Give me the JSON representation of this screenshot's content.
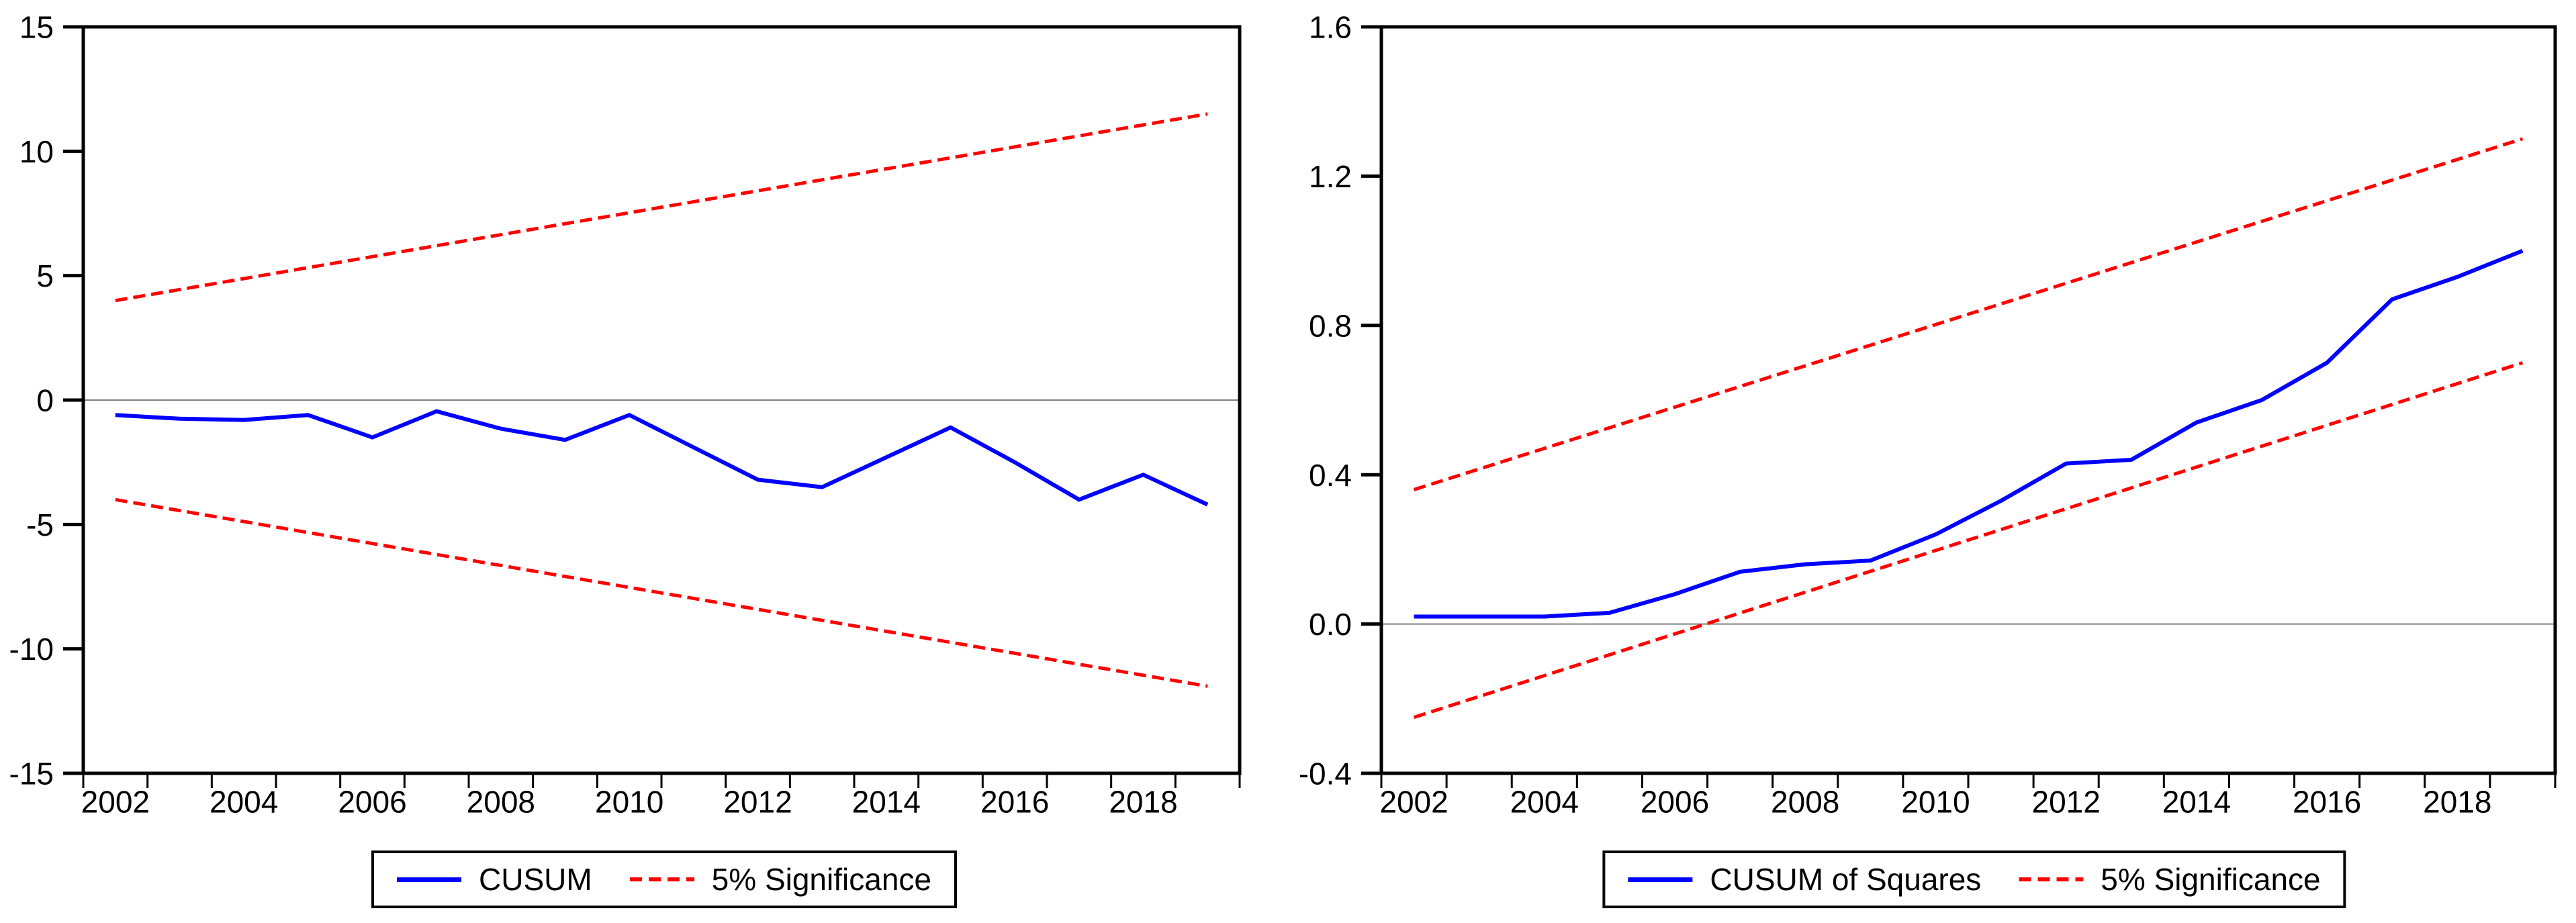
{
  "colors": {
    "series_line": "#0000ff",
    "significance_line": "#ff0000",
    "axis": "#000000",
    "zero_line": "#808080",
    "background": "#ffffff",
    "text": "#000000"
  },
  "chart_data": [
    {
      "type": "line",
      "title": "",
      "xlabel": "",
      "ylabel": "",
      "x": [
        2002,
        2003,
        2004,
        2005,
        2006,
        2007,
        2008,
        2009,
        2010,
        2011,
        2012,
        2013,
        2014,
        2015,
        2016,
        2017,
        2018,
        2019
      ],
      "xtick_labels": [
        "2002",
        "2004",
        "2006",
        "2008",
        "2010",
        "2012",
        "2014",
        "2016",
        "2018"
      ],
      "ylim": [
        -15,
        15
      ],
      "yticks": [
        {
          "value": 15,
          "label": "15"
        },
        {
          "value": 10,
          "label": "10"
        },
        {
          "value": 5,
          "label": "5"
        },
        {
          "value": 0,
          "label": "0"
        },
        {
          "value": -5,
          "label": "-5"
        },
        {
          "value": -10,
          "label": "-10"
        },
        {
          "value": -15,
          "label": "-15"
        }
      ],
      "grid": "horizontal-zero-line-only",
      "legend_position": "bottom-center",
      "series": [
        {
          "name": "CUSUM",
          "style": "solid",
          "color": "#0000ff",
          "values": [
            -0.6,
            -0.75,
            -0.8,
            -0.6,
            -1.5,
            -0.45,
            -1.15,
            -1.6,
            -0.6,
            -1.9,
            -3.2,
            -3.5,
            -2.3,
            -1.1,
            -2.5,
            -4.0,
            -3.0,
            -4.2
          ]
        },
        {
          "name": "5% Significance (upper bound)",
          "style": "dashed",
          "color": "#ff0000",
          "linear_endpoints": true,
          "values": [
            4.0,
            11.5
          ]
        },
        {
          "name": "5% Significance (lower bound)",
          "style": "dashed",
          "color": "#ff0000",
          "linear_endpoints": true,
          "values": [
            -4.0,
            -11.5
          ]
        }
      ],
      "legend": [
        {
          "label": "CUSUM",
          "style": "solid",
          "color": "#0000ff"
        },
        {
          "label": "5% Significance",
          "style": "dashed",
          "color": "#ff0000"
        }
      ]
    },
    {
      "type": "line",
      "title": "",
      "xlabel": "",
      "ylabel": "",
      "x": [
        2002,
        2003,
        2004,
        2005,
        2006,
        2007,
        2008,
        2009,
        2010,
        2011,
        2012,
        2013,
        2014,
        2015,
        2016,
        2017,
        2018,
        2019
      ],
      "xtick_labels": [
        "2002",
        "2004",
        "2006",
        "2008",
        "2010",
        "2012",
        "2014",
        "2016",
        "2018"
      ],
      "ylim": [
        -0.4,
        1.6
      ],
      "yticks": [
        {
          "value": 1.6,
          "label": "1.6"
        },
        {
          "value": 1.2,
          "label": "1.2"
        },
        {
          "value": 0.8,
          "label": "0.8"
        },
        {
          "value": 0.4,
          "label": "0.4"
        },
        {
          "value": 0.0,
          "label": "0.0"
        },
        {
          "value": -0.4,
          "label": "-0.4"
        }
      ],
      "grid": "horizontal-zero-line-only",
      "legend_position": "bottom-center",
      "series": [
        {
          "name": "CUSUM of Squares",
          "style": "solid",
          "color": "#0000ff",
          "values": [
            0.02,
            0.02,
            0.02,
            0.03,
            0.08,
            0.14,
            0.16,
            0.17,
            0.24,
            0.33,
            0.43,
            0.44,
            0.54,
            0.6,
            0.7,
            0.87,
            0.93,
            1.0
          ]
        },
        {
          "name": "5% Significance (upper bound)",
          "style": "dashed",
          "color": "#ff0000",
          "linear_endpoints": true,
          "values": [
            0.36,
            1.3
          ]
        },
        {
          "name": "5% Significance (lower bound)",
          "style": "dashed",
          "color": "#ff0000",
          "linear_endpoints": true,
          "values": [
            -0.25,
            0.7
          ]
        }
      ],
      "legend": [
        {
          "label": "CUSUM of Squares",
          "style": "solid",
          "color": "#0000ff"
        },
        {
          "label": "5% Significance",
          "style": "dashed",
          "color": "#ff0000"
        }
      ]
    }
  ]
}
